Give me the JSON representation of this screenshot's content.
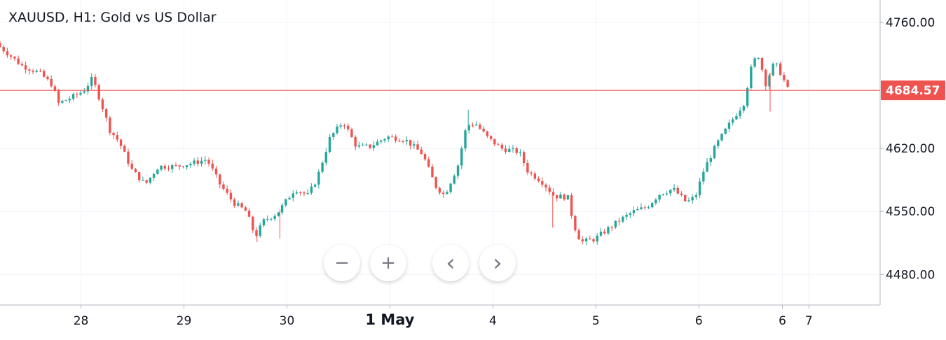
{
  "header": {
    "title": "XAUUSD, H1: Gold vs US Dollar"
  },
  "controls": {
    "zoom_out": {
      "glyph": "−",
      "icon": "minus-icon"
    },
    "zoom_in": {
      "glyph": "+",
      "icon": "plus-icon"
    },
    "scroll_left": {
      "glyph": "‹",
      "icon": "chevron-left-icon"
    },
    "scroll_right": {
      "glyph": "›",
      "icon": "chevron-right-icon"
    }
  },
  "colors": {
    "up": "#26a69a",
    "down": "#ef5350",
    "last_price_line": "#ef5350",
    "grid": "#f0f3fa",
    "axis_text": "#131722"
  },
  "chart_data": {
    "type": "candlestick",
    "symbol": "XAUUSD",
    "timeframe": "H1",
    "title": "XAUUSD, H1: Gold vs US Dollar",
    "y_axis": {
      "position": "right",
      "ticks": [
        4760,
        4620,
        4550,
        4480
      ],
      "tick_labels": [
        "4760.00",
        "4620.00",
        "4550.00",
        "4480.00"
      ],
      "range": [
        4446,
        4785
      ]
    },
    "x_axis": {
      "ticks": [
        {
          "label": "28",
          "pos": 0.092,
          "bold": false
        },
        {
          "label": "29",
          "pos": 0.209,
          "bold": false
        },
        {
          "label": "30",
          "pos": 0.326,
          "bold": false
        },
        {
          "label": "1 May",
          "pos": 0.443,
          "bold": true
        },
        {
          "label": "4",
          "pos": 0.56,
          "bold": false
        },
        {
          "label": "5",
          "pos": 0.677,
          "bold": false
        },
        {
          "label": "6",
          "pos": 0.794,
          "bold": false
        },
        {
          "label": "6",
          "pos": 0.889,
          "bold": false
        },
        {
          "label": "7",
          "pos": 0.919,
          "bold": false
        }
      ]
    },
    "last_price": 4684.57,
    "last_price_label": "4684.57",
    "grid": true,
    "path": [
      [
        0.0,
        4733
      ],
      [
        0.025,
        4712
      ],
      [
        0.045,
        4704
      ],
      [
        0.06,
        4690
      ],
      [
        0.066,
        4670
      ],
      [
        0.08,
        4676
      ],
      [
        0.095,
        4684
      ],
      [
        0.105,
        4698
      ],
      [
        0.115,
        4670
      ],
      [
        0.125,
        4640
      ],
      [
        0.135,
        4628
      ],
      [
        0.15,
        4596
      ],
      [
        0.165,
        4580
      ],
      [
        0.18,
        4600
      ],
      [
        0.2,
        4600
      ],
      [
        0.22,
        4604
      ],
      [
        0.235,
        4608
      ],
      [
        0.25,
        4580
      ],
      [
        0.265,
        4560
      ],
      [
        0.28,
        4550
      ],
      [
        0.29,
        4522
      ],
      [
        0.3,
        4540
      ],
      [
        0.315,
        4548
      ],
      [
        0.335,
        4575
      ],
      [
        0.35,
        4568
      ],
      [
        0.36,
        4586
      ],
      [
        0.375,
        4632
      ],
      [
        0.39,
        4650
      ],
      [
        0.405,
        4622
      ],
      [
        0.42,
        4622
      ],
      [
        0.44,
        4633
      ],
      [
        0.46,
        4630
      ],
      [
        0.48,
        4614
      ],
      [
        0.495,
        4578
      ],
      [
        0.505,
        4568
      ],
      [
        0.52,
        4600
      ],
      [
        0.53,
        4645
      ],
      [
        0.54,
        4648
      ],
      [
        0.555,
        4631
      ],
      [
        0.57,
        4620
      ],
      [
        0.59,
        4616
      ],
      [
        0.6,
        4594
      ],
      [
        0.615,
        4584
      ],
      [
        0.63,
        4567
      ],
      [
        0.645,
        4566
      ],
      [
        0.652,
        4535
      ],
      [
        0.66,
        4516
      ],
      [
        0.675,
        4519
      ],
      [
        0.69,
        4530
      ],
      [
        0.705,
        4541
      ],
      [
        0.72,
        4550
      ],
      [
        0.735,
        4555
      ],
      [
        0.75,
        4570
      ],
      [
        0.765,
        4575
      ],
      [
        0.78,
        4560
      ],
      [
        0.79,
        4566
      ],
      [
        0.8,
        4597
      ],
      [
        0.815,
        4626
      ],
      [
        0.83,
        4649
      ],
      [
        0.845,
        4670
      ],
      [
        0.855,
        4716
      ],
      [
        0.862,
        4723
      ],
      [
        0.87,
        4692
      ],
      [
        0.88,
        4716
      ],
      [
        0.888,
        4702
      ],
      [
        0.895,
        4686
      ]
    ],
    "spikes": [
      {
        "pos": 0.628,
        "value": 4532
      },
      {
        "pos": 0.875,
        "value": 4661
      },
      {
        "pos": 0.292,
        "value": 4516
      },
      {
        "pos": 0.318,
        "value": 4520
      },
      {
        "pos": 0.532,
        "value": 4663
      }
    ]
  }
}
